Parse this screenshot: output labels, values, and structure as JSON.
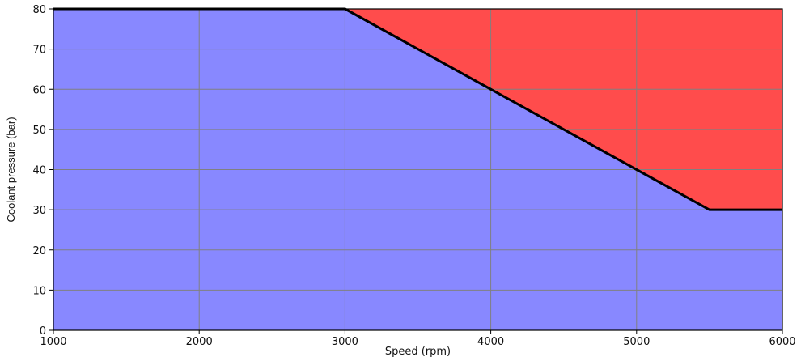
{
  "chart_data": {
    "type": "area",
    "title": "",
    "xlabel": "Speed (rpm)",
    "ylabel": "Coolant pressure (bar)",
    "xlim": [
      1000,
      6000
    ],
    "ylim": [
      0,
      80
    ],
    "x_ticks": [
      "1000",
      "2000",
      "3000",
      "4000",
      "5000",
      "6000"
    ],
    "y_ticks": [
      "0",
      "10",
      "20",
      "30",
      "40",
      "50",
      "60",
      "70",
      "80"
    ],
    "grid": true,
    "boundary": {
      "x": [
        1000,
        3000,
        4000,
        5000,
        5500,
        6000
      ],
      "y": [
        80,
        80,
        60,
        40,
        30,
        30
      ]
    },
    "regions": [
      {
        "position": "below boundary",
        "color": "#8888ff"
      },
      {
        "position": "above boundary",
        "color": "#ff4c4c"
      }
    ],
    "boundary_color": "#000000",
    "grid_color": "#808080"
  }
}
